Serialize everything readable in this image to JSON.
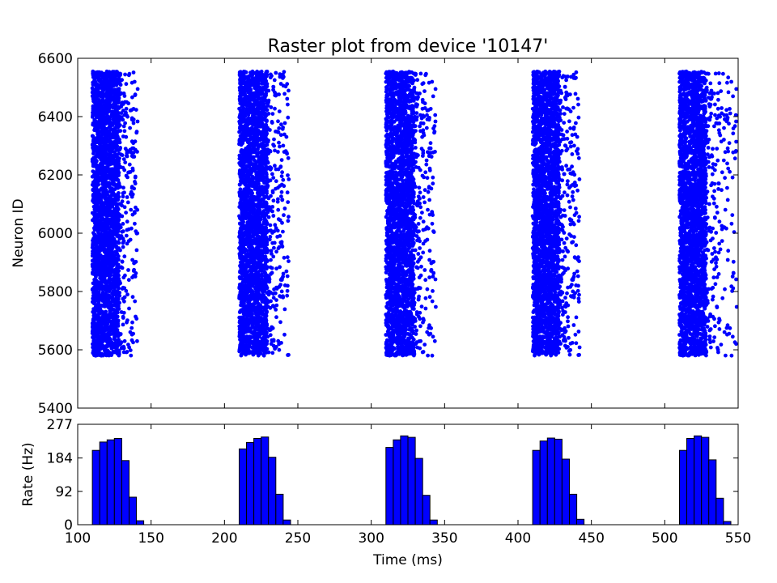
{
  "chart_data": [
    {
      "type": "scatter",
      "title": "Raster plot from device '10147'",
      "xlabel": "",
      "ylabel": "Neuron ID",
      "xlim": [
        100,
        550
      ],
      "ylim": [
        5400,
        6600
      ],
      "yticks": [
        5400,
        5600,
        5800,
        6000,
        6200,
        6400,
        6600
      ],
      "neuron_id_range": [
        5580,
        6555
      ],
      "marker_color": "#0000ff",
      "grid": false,
      "legend": "none",
      "bursts": [
        {
          "start": 110,
          "core_end": 128,
          "tail_end": 141
        },
        {
          "start": 210,
          "core_end": 229,
          "tail_end": 244
        },
        {
          "start": 310,
          "core_end": 329,
          "tail_end": 344
        },
        {
          "start": 410,
          "core_end": 428,
          "tail_end": 442
        },
        {
          "start": 510,
          "core_end": 528,
          "tail_end": 549
        }
      ]
    },
    {
      "type": "bar",
      "xlabel": "Time (ms)",
      "ylabel": "Rate (Hz)",
      "xlim": [
        100,
        550
      ],
      "ylim": [
        0,
        277
      ],
      "xticks": [
        100,
        150,
        200,
        250,
        300,
        350,
        400,
        450,
        500,
        550
      ],
      "yticks": [
        0,
        92,
        184,
        277
      ],
      "bin_width": 5,
      "bar_color": "#0000ff",
      "grid": false,
      "legend": "none",
      "bins": [
        {
          "x": 110,
          "value": 205
        },
        {
          "x": 115,
          "value": 228
        },
        {
          "x": 120,
          "value": 234
        },
        {
          "x": 125,
          "value": 238
        },
        {
          "x": 130,
          "value": 177
        },
        {
          "x": 135,
          "value": 76
        },
        {
          "x": 140,
          "value": 11
        },
        {
          "x": 210,
          "value": 209
        },
        {
          "x": 215,
          "value": 227
        },
        {
          "x": 220,
          "value": 238
        },
        {
          "x": 225,
          "value": 242
        },
        {
          "x": 230,
          "value": 186
        },
        {
          "x": 235,
          "value": 84
        },
        {
          "x": 240,
          "value": 13
        },
        {
          "x": 310,
          "value": 213
        },
        {
          "x": 315,
          "value": 234
        },
        {
          "x": 320,
          "value": 245
        },
        {
          "x": 325,
          "value": 241
        },
        {
          "x": 330,
          "value": 183
        },
        {
          "x": 335,
          "value": 81
        },
        {
          "x": 340,
          "value": 13
        },
        {
          "x": 410,
          "value": 205
        },
        {
          "x": 415,
          "value": 231
        },
        {
          "x": 420,
          "value": 239
        },
        {
          "x": 425,
          "value": 236
        },
        {
          "x": 430,
          "value": 181
        },
        {
          "x": 435,
          "value": 84
        },
        {
          "x": 440,
          "value": 15
        },
        {
          "x": 510,
          "value": 205
        },
        {
          "x": 515,
          "value": 238
        },
        {
          "x": 520,
          "value": 245
        },
        {
          "x": 525,
          "value": 241
        },
        {
          "x": 530,
          "value": 179
        },
        {
          "x": 535,
          "value": 73
        },
        {
          "x": 540,
          "value": 9
        }
      ]
    }
  ]
}
